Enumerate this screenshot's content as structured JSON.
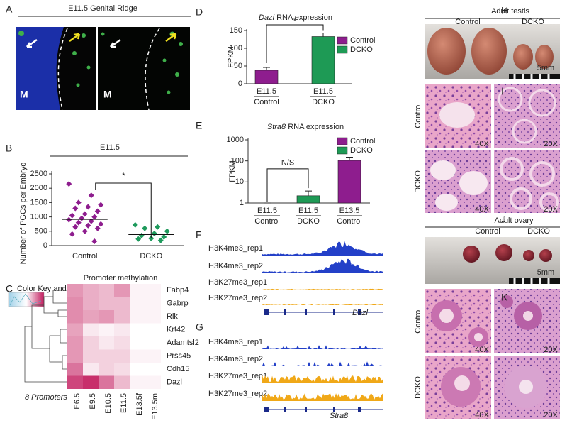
{
  "chart_data": [
    {
      "type": "scatter",
      "title": "E11.5",
      "y_label": "Number of PGCs per Embryo",
      "categories": [
        "Control",
        "DCKO"
      ],
      "series": [
        {
          "color": "#8e1d8e",
          "values": [
            2150,
            1750,
            1500,
            1420,
            1350,
            1300,
            1200,
            1100,
            1050,
            1000,
            950,
            900,
            850,
            800,
            750,
            700,
            650,
            600,
            500,
            400,
            150
          ]
        },
        {
          "color": "#1e9a5c",
          "values": [
            720,
            650,
            600,
            500,
            420,
            350,
            300,
            250,
            230,
            180
          ]
        }
      ],
      "means": [
        920,
        390
      ],
      "ylim": [
        0,
        2500
      ],
      "yticks": [
        0,
        500,
        1000,
        1500,
        2000,
        2500
      ],
      "annotation": "*"
    },
    {
      "type": "heatmap",
      "title": "Promoter methylation",
      "note": "8 Promoters",
      "color_key_title": "Color Key and Histogram",
      "rows": [
        "Fabp4",
        "Gabrp",
        "Rik",
        "Krt42",
        "Adamtsl2",
        "Prss45",
        "Cdh15",
        "Dazl"
      ],
      "columns": [
        "E6.5",
        "E9.5",
        "E10.5",
        "E11.5",
        "E13.5f",
        "E13.5m"
      ],
      "values": [
        [
          0.45,
          0.35,
          0.3,
          0.45,
          0.05,
          0.05
        ],
        [
          0.5,
          0.35,
          0.3,
          0.3,
          0.05,
          0.05
        ],
        [
          0.5,
          0.4,
          0.45,
          0.3,
          0.05,
          0.05
        ],
        [
          0.4,
          0.1,
          0.05,
          0.1,
          0,
          0
        ],
        [
          0.45,
          0.2,
          0.1,
          0.15,
          0,
          0
        ],
        [
          0.45,
          0.2,
          0.2,
          0.2,
          0.05,
          0.05
        ],
        [
          0.6,
          0.1,
          0.2,
          0.15,
          0,
          0
        ],
        [
          0.8,
          0.9,
          0.6,
          0.3,
          0.05,
          0.05
        ]
      ],
      "zlim": [
        0,
        1
      ],
      "colorscale": [
        "#ffffff",
        "#c2185b"
      ]
    },
    {
      "type": "bar",
      "title_gene": "Dazl",
      "title": "RNA expression",
      "y_label": "FPKM",
      "categories": [
        "E11.5",
        "E11.5"
      ],
      "groups": [
        "Control",
        "DCKO"
      ],
      "values": [
        38,
        133
      ],
      "errors": [
        8,
        10
      ],
      "colors": [
        "#8e1d8e",
        "#1e9a55"
      ],
      "legend": [
        {
          "name": "Control",
          "color": "#8e1d8e"
        },
        {
          "name": "DCKO",
          "color": "#1e9a55"
        }
      ],
      "ylim": [
        0,
        150
      ],
      "yticks": [
        0,
        50,
        100,
        150
      ],
      "annotation": "*"
    },
    {
      "type": "bar",
      "log_scale": true,
      "title_gene": "Stra8",
      "title": "RNA expression",
      "y_label": "FPKM",
      "categories": [
        "E11.5",
        "E11.5",
        "E13.5"
      ],
      "groups": [
        "Control",
        "DCKO",
        "Control"
      ],
      "values": [
        1,
        2.2,
        105
      ],
      "errors": [
        0,
        1.5,
        45
      ],
      "colors": [
        "#8e1d8e",
        "#1e9a55",
        "#8e1d8e"
      ],
      "legend": [
        {
          "name": "Control",
          "color": "#8e1d8e"
        },
        {
          "name": "DCKO",
          "color": "#1e9a55"
        }
      ],
      "ylim": [
        1,
        1000
      ],
      "yticks": [
        1,
        10,
        100,
        1000
      ],
      "annotation": "N/S"
    }
  ],
  "figure": {
    "panel_letters": [
      "A",
      "B",
      "C",
      "D",
      "E",
      "F",
      "G",
      "H",
      "I",
      "J",
      "K"
    ],
    "genital_ridge": {
      "title": "E11.5 Genital Ridge",
      "labels": [
        "M",
        "M"
      ]
    },
    "testis": {
      "title": "Adult testis",
      "groups": [
        "Control",
        "DCKO"
      ],
      "scale": "5mm"
    },
    "testis_histology": {
      "rows": [
        "Control",
        "DCKO"
      ],
      "magnifications": [
        "40X",
        "20X",
        "40X",
        "20X"
      ]
    },
    "ovary": {
      "title": "Adult ovary",
      "groups": [
        "Control",
        "DCKO"
      ],
      "scale": "5mm"
    },
    "ovary_histology": {
      "rows": [
        "Control",
        "DCKO"
      ],
      "magnifications": [
        "40X",
        "20X",
        "40X",
        "20X"
      ]
    },
    "dazl_tracks": {
      "tracks": [
        "H3K4me3_rep1",
        "H3K4me3_rep2",
        "H3K27me3_rep1",
        "H3K27me3_rep2"
      ],
      "gene": "Dazl"
    },
    "stra8_tracks": {
      "tracks": [
        "H3K4me3_rep1",
        "H3K4me3_rep2",
        "H3K27me3_rep1",
        "H3K27me3_rep2"
      ],
      "gene": "Stra8"
    }
  }
}
